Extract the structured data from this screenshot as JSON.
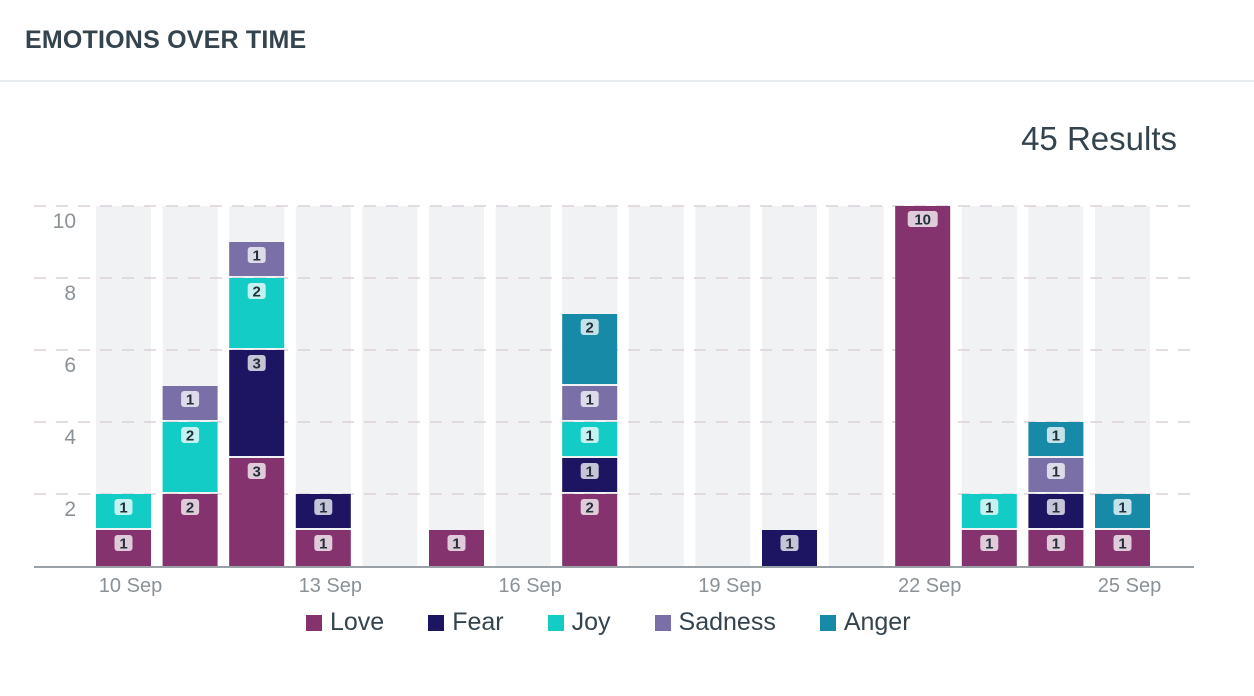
{
  "header": {
    "title": "EMOTIONS OVER TIME"
  },
  "results_label": "45 Results",
  "colors": {
    "Love": "#84336e",
    "Fear": "#1d1462",
    "Joy": "#13ccc5",
    "Sadness": "#7a6fa6",
    "Anger": "#168aa6",
    "track": "#f1f2f4",
    "grid": "#ddd0da",
    "axis": "#9aa1a6",
    "tick_text": "#8a9298"
  },
  "chart_data": {
    "type": "bar",
    "stacked": true,
    "title": "EMOTIONS OVER TIME",
    "xlabel": "",
    "ylabel": "",
    "ylim": [
      0,
      10
    ],
    "yticks": [
      2,
      4,
      6,
      8,
      10
    ],
    "grid": true,
    "legend_position": "bottom",
    "categories": [
      "10 Sep",
      "11 Sep",
      "12 Sep",
      "13 Sep",
      "14 Sep",
      "15 Sep",
      "16 Sep",
      "17 Sep",
      "18 Sep",
      "19 Sep",
      "20 Sep",
      "21 Sep",
      "22 Sep",
      "23 Sep",
      "24 Sep",
      "25 Sep"
    ],
    "xtick_labels": [
      "10 Sep",
      "13 Sep",
      "16 Sep",
      "19 Sep",
      "22 Sep",
      "25 Sep"
    ],
    "series": [
      {
        "name": "Love",
        "values": [
          1,
          2,
          3,
          1,
          0,
          1,
          0,
          2,
          0,
          0,
          0,
          0,
          10,
          1,
          1,
          1
        ]
      },
      {
        "name": "Fear",
        "values": [
          0,
          0,
          3,
          1,
          0,
          0,
          0,
          1,
          0,
          0,
          1,
          0,
          0,
          0,
          1,
          0
        ]
      },
      {
        "name": "Joy",
        "values": [
          1,
          2,
          2,
          0,
          0,
          0,
          0,
          1,
          0,
          0,
          0,
          0,
          0,
          1,
          0,
          0
        ]
      },
      {
        "name": "Sadness",
        "values": [
          0,
          1,
          1,
          0,
          0,
          0,
          0,
          1,
          0,
          0,
          0,
          0,
          0,
          0,
          1,
          0
        ]
      },
      {
        "name": "Anger",
        "values": [
          0,
          0,
          0,
          0,
          0,
          0,
          0,
          2,
          0,
          0,
          0,
          0,
          0,
          0,
          1,
          1
        ]
      }
    ],
    "total": 45
  }
}
